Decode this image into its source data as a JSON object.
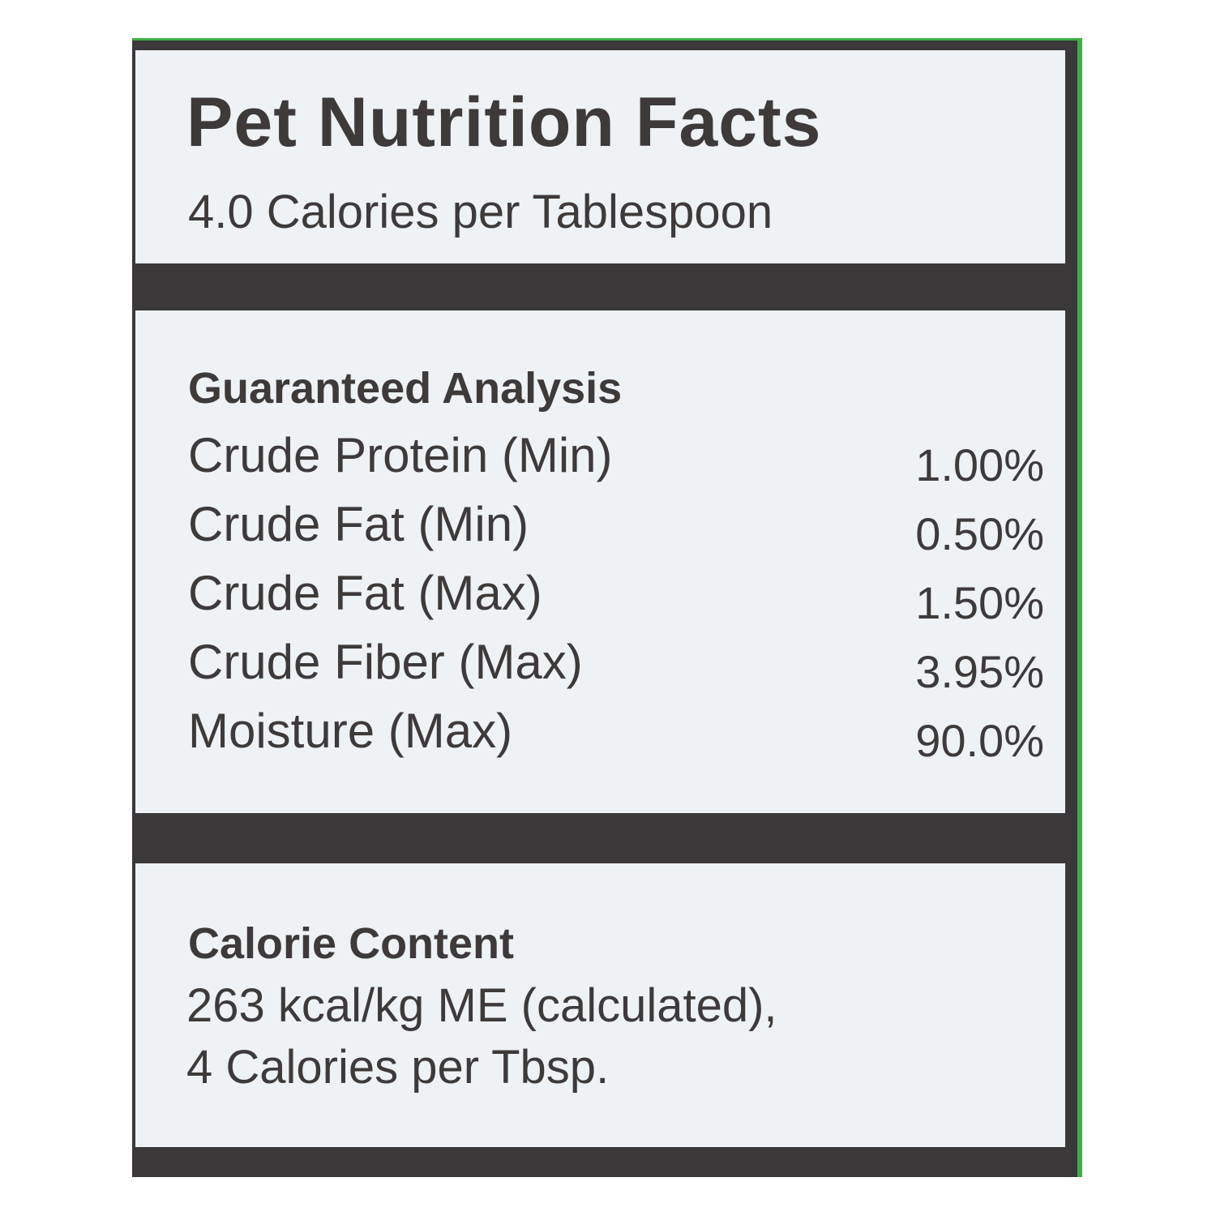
{
  "header": {
    "title": "Pet Nutrition Facts",
    "subtitle": "4.0 Calories per Tablespoon"
  },
  "analysis": {
    "heading": "Guaranteed Analysis",
    "rows": [
      [
        "Crude Protein (Min)",
        "1.00%"
      ],
      [
        "Crude Fat (Min)",
        "0.50%"
      ],
      [
        "Crude Fat (Max)",
        "1.50%"
      ],
      [
        "Crude Fiber (Max)",
        "3.95%"
      ],
      [
        "Moisture (Max)",
        "90.0%"
      ]
    ]
  },
  "calorie_content": {
    "heading": "Calorie Content",
    "lines": [
      "263 kcal/kg ME (calculated),",
      "4 Calories per Tbsp."
    ]
  }
}
